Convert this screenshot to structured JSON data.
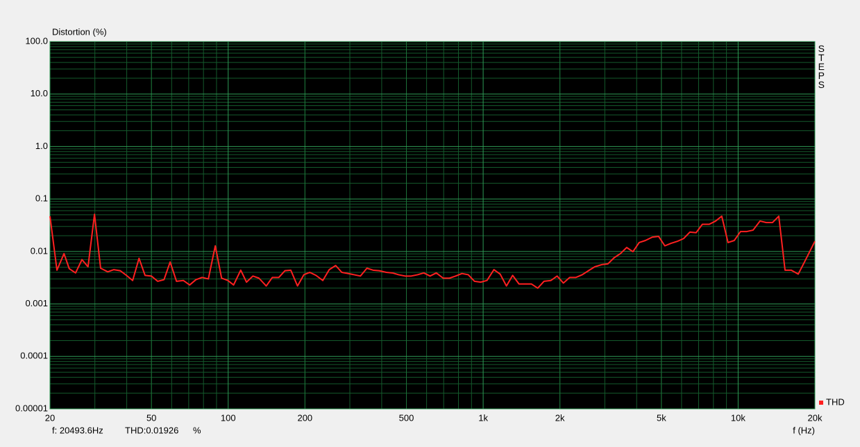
{
  "chart_data": {
    "type": "line",
    "title": "Distortion (%)",
    "x_label": "f (Hz)",
    "side_label": "STEPS",
    "status": {
      "frequency": "f: 20493.6Hz",
      "reading": "THD:0.01926",
      "unit": "%"
    },
    "log_x": true,
    "log_y": true,
    "grid": true,
    "minor_grid": true,
    "legend": "lower right",
    "xlim": [
      20,
      20000
    ],
    "ylim": [
      1e-05,
      100
    ],
    "xticks": [
      20,
      50,
      100,
      200,
      500,
      {
        "value": 1000,
        "label": "1k"
      },
      {
        "value": 2000,
        "label": "2k"
      },
      {
        "value": 5000,
        "label": "5k"
      },
      {
        "value": 10000,
        "label": "10k"
      },
      {
        "value": 20000,
        "label": "20k"
      }
    ],
    "yticks": [
      {
        "value": 100,
        "label": "100.0"
      },
      {
        "value": 10,
        "label": "10.0"
      },
      {
        "value": 1,
        "label": "1.0"
      },
      0.1,
      0.01,
      0.001,
      0.0001,
      1e-05
    ],
    "x": [
      20,
      21.3,
      22.7,
      23.8,
      25.2,
      26.7,
      28.2,
      29.9,
      31.6,
      33.7,
      35.6,
      37.7,
      39.9,
      42.2,
      44.7,
      47.2,
      50.0,
      52.9,
      56.0,
      59.2,
      62.7,
      66.7,
      70.6,
      74.7,
      79.0,
      83.6,
      89.0,
      94.2,
      99.7,
      105,
      112,
      118,
      125,
      132,
      141,
      149,
      158,
      167,
      176,
      187,
      198,
      209,
      221,
      235,
      249,
      264,
      279,
      295,
      312,
      330,
      350,
      370,
      391,
      417,
      441,
      466,
      494,
      522,
      553,
      585,
      619,
      655,
      697,
      738,
      780,
      826,
      874,
      925,
      978,
      1035,
      1102,
      1166,
      1234,
      1305,
      1382,
      1462,
      1547,
      1637,
      1732,
      1844,
      1950,
      2064,
      2184,
      2311,
      2446,
      2588,
      2738,
      2915,
      3084,
      3264,
      3454,
      3655,
      3867,
      4092,
      4329,
      4608,
      4876,
      5159,
      5458,
      5776,
      6110,
      6466,
      6842,
      7240,
      7705,
      8151,
      8626,
      9128,
      9659,
      10220,
      10816,
      11445,
      12182,
      12892,
      13642,
      14436,
      15276,
      16166,
      17205,
      18206,
      20000
    ],
    "series": [
      {
        "name": "THD",
        "color": "#ff2020",
        "values": [
          0.047,
          0.0044,
          0.0091,
          0.0047,
          0.0039,
          0.007,
          0.0051,
          0.051,
          0.0048,
          0.0041,
          0.0045,
          0.0043,
          0.0035,
          0.0028,
          0.0074,
          0.0035,
          0.0034,
          0.0027,
          0.0029,
          0.0063,
          0.0027,
          0.0028,
          0.0023,
          0.0029,
          0.0032,
          0.003,
          0.0128,
          0.0031,
          0.0028,
          0.0023,
          0.0044,
          0.0026,
          0.0034,
          0.0031,
          0.0022,
          0.0032,
          0.0032,
          0.0043,
          0.0044,
          0.0022,
          0.0036,
          0.004,
          0.0035,
          0.0028,
          0.0045,
          0.0054,
          0.004,
          0.0038,
          0.0036,
          0.0034,
          0.0048,
          0.0044,
          0.0043,
          0.004,
          0.0039,
          0.0036,
          0.0034,
          0.0034,
          0.0036,
          0.0039,
          0.0034,
          0.0039,
          0.0031,
          0.0031,
          0.0034,
          0.0038,
          0.0036,
          0.0027,
          0.0026,
          0.0028,
          0.0045,
          0.0037,
          0.0022,
          0.0035,
          0.0024,
          0.0024,
          0.0024,
          0.002,
          0.0027,
          0.0028,
          0.0034,
          0.0025,
          0.0032,
          0.0032,
          0.0036,
          0.0043,
          0.0051,
          0.0056,
          0.0058,
          0.0076,
          0.0091,
          0.0119,
          0.0099,
          0.0148,
          0.0162,
          0.0188,
          0.0194,
          0.0128,
          0.0143,
          0.0156,
          0.0176,
          0.0234,
          0.0228,
          0.033,
          0.033,
          0.0379,
          0.047,
          0.0148,
          0.0162,
          0.024,
          0.024,
          0.0255,
          0.038,
          0.0356,
          0.0356,
          0.047,
          0.0044,
          0.0044,
          0.0037,
          0.0063,
          0.0156
        ]
      }
    ]
  }
}
